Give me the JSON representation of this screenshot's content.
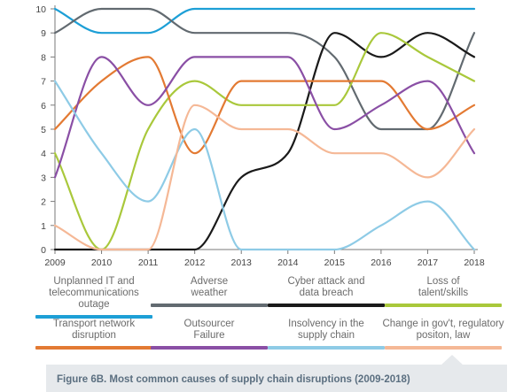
{
  "chart_data": {
    "type": "line",
    "title": "",
    "x": [
      "2009",
      "2010",
      "2011",
      "2012",
      "2013",
      "2014",
      "2015",
      "2016",
      "2017",
      "2018"
    ],
    "xlabel": "",
    "ylabel": "",
    "ylim": [
      0,
      10
    ],
    "yticks": [
      "0",
      "1",
      "2",
      "3",
      "4",
      "5",
      "6",
      "7",
      "8",
      "9",
      "10"
    ],
    "grid": false,
    "series": [
      {
        "name": "Unplanned IT and telecommunications outage",
        "color": "#1d9fd6",
        "values": [
          10,
          9,
          9,
          10,
          10,
          10,
          10,
          10,
          10,
          10
        ]
      },
      {
        "name": "Adverse weather",
        "color": "#626a70",
        "values": [
          9,
          10,
          10,
          9,
          9,
          9,
          8,
          5,
          5,
          9
        ]
      },
      {
        "name": "Cyber attack and data breach",
        "color": "#1a1a1a",
        "values": [
          0,
          0,
          0,
          0,
          3,
          4,
          9,
          8,
          9,
          8
        ]
      },
      {
        "name": "Loss of talent/skills",
        "color": "#a9c83b",
        "values": [
          4,
          0,
          5,
          7,
          6,
          6,
          6,
          9,
          8,
          7
        ]
      },
      {
        "name": "Transport network disruption",
        "color": "#e37a33",
        "values": [
          5,
          7,
          8,
          4,
          7,
          7,
          7,
          7,
          5,
          6
        ]
      },
      {
        "name": "Outsourcer Failure",
        "color": "#8a4fa5",
        "values": [
          3,
          8,
          6,
          8,
          8,
          8,
          5,
          6,
          7,
          4
        ]
      },
      {
        "name": "Insolvency in the supply chain",
        "color": "#8ecbe6",
        "values": [
          7,
          4,
          2,
          5,
          0,
          0,
          0,
          1,
          2,
          0
        ]
      },
      {
        "name": "Change in gov't, regulatory positon, law",
        "color": "#f5b896",
        "values": [
          1,
          0,
          0,
          6,
          5,
          5,
          4,
          4,
          3,
          5
        ]
      }
    ]
  },
  "legend": [
    {
      "label": "Unplanned IT and telecommunications outage",
      "color": "#1d9fd6"
    },
    {
      "label": "Adverse weather",
      "color": "#626a70"
    },
    {
      "label": "Cyber attack and data breach",
      "color": "#1a1a1a"
    },
    {
      "label": "Loss of talent/skills",
      "color": "#a9c83b"
    },
    {
      "label": "Transport network disruption",
      "color": "#e37a33"
    },
    {
      "label": "Outsourcer Failure",
      "color": "#8a4fa5"
    },
    {
      "label": "Insolvency in the supply chain",
      "color": "#8ecbe6"
    },
    {
      "label": "Change in gov't, regulatory positon, law",
      "color": "#f5b896"
    }
  ],
  "caption": "Figure 6B. Most common causes of supply chain disruptions (2009-2018)",
  "colors": {
    "axis": "#7a7a7a",
    "caption_bg": "#e6e9ec",
    "caption_text": "#5b6f80"
  }
}
